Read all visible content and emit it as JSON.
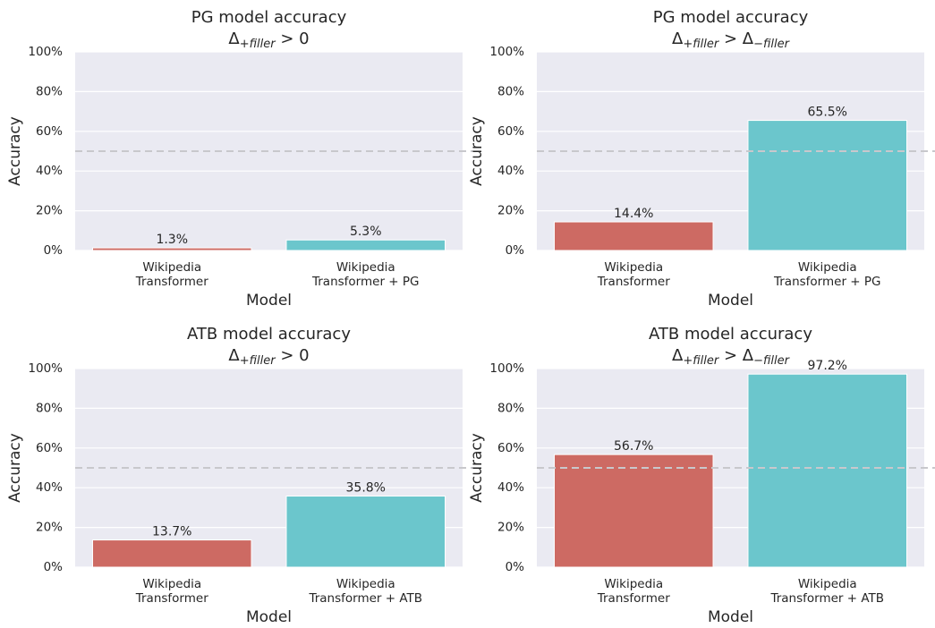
{
  "chart_data": [
    {
      "type": "bar",
      "title": "PG model accuracy",
      "subtitle": [
        {
          "text": "Δ"
        },
        {
          "text": "+filler",
          "sub": true
        },
        {
          "text": " > 0"
        }
      ],
      "xlabel": "Model",
      "ylabel": "Accuracy",
      "categories": [
        [
          "Wikipedia",
          "Transformer"
        ],
        [
          "Wikipedia",
          "Transformer + PG"
        ]
      ],
      "values": [
        1.3,
        5.3
      ],
      "value_labels": [
        "1.3%",
        "5.3%"
      ],
      "colors": [
        "#cd6a63",
        "#6bc6cc"
      ],
      "ylim": [
        0,
        100
      ],
      "yticks": [
        {
          "value": 0,
          "label": "0%"
        },
        {
          "value": 20,
          "label": "20%"
        },
        {
          "value": 40,
          "label": "40%"
        },
        {
          "value": 60,
          "label": "60%"
        },
        {
          "value": 80,
          "label": "80%"
        },
        {
          "value": 100,
          "label": "100%"
        }
      ],
      "hline": 50,
      "grid": true
    },
    {
      "type": "bar",
      "title": "PG model accuracy",
      "subtitle": [
        {
          "text": "Δ"
        },
        {
          "text": "+filler",
          "sub": true
        },
        {
          "text": " > Δ"
        },
        {
          "text": "−filler",
          "sub": true
        }
      ],
      "xlabel": "Model",
      "ylabel": "Accuracy",
      "categories": [
        [
          "Wikipedia",
          "Transformer"
        ],
        [
          "Wikipedia",
          "Transformer + PG"
        ]
      ],
      "values": [
        14.4,
        65.5
      ],
      "value_labels": [
        "14.4%",
        "65.5%"
      ],
      "colors": [
        "#cd6a63",
        "#6bc6cc"
      ],
      "ylim": [
        0,
        100
      ],
      "yticks": [
        {
          "value": 0,
          "label": "0%"
        },
        {
          "value": 20,
          "label": "20%"
        },
        {
          "value": 40,
          "label": "40%"
        },
        {
          "value": 60,
          "label": "60%"
        },
        {
          "value": 80,
          "label": "80%"
        },
        {
          "value": 100,
          "label": "100%"
        }
      ],
      "hline": 50,
      "grid": true
    },
    {
      "type": "bar",
      "title": "ATB model accuracy",
      "subtitle": [
        {
          "text": "Δ"
        },
        {
          "text": "+filler",
          "sub": true
        },
        {
          "text": " > 0"
        }
      ],
      "xlabel": "Model",
      "ylabel": "Accuracy",
      "categories": [
        [
          "Wikipedia",
          "Transformer"
        ],
        [
          "Wikipedia",
          "Transformer + ATB"
        ]
      ],
      "values": [
        13.7,
        35.8
      ],
      "value_labels": [
        "13.7%",
        "35.8%"
      ],
      "colors": [
        "#cd6a63",
        "#6bc6cc"
      ],
      "ylim": [
        0,
        100
      ],
      "yticks": [
        {
          "value": 0,
          "label": "0%"
        },
        {
          "value": 20,
          "label": "20%"
        },
        {
          "value": 40,
          "label": "40%"
        },
        {
          "value": 60,
          "label": "60%"
        },
        {
          "value": 80,
          "label": "80%"
        },
        {
          "value": 100,
          "label": "100%"
        }
      ],
      "hline": 50,
      "grid": true
    },
    {
      "type": "bar",
      "title": "ATB model accuracy",
      "subtitle": [
        {
          "text": "Δ"
        },
        {
          "text": "+filler",
          "sub": true
        },
        {
          "text": " > Δ"
        },
        {
          "text": "−filler",
          "sub": true
        }
      ],
      "xlabel": "Model",
      "ylabel": "Accuracy",
      "categories": [
        [
          "Wikipedia",
          "Transformer"
        ],
        [
          "Wikipedia",
          "Transformer + ATB"
        ]
      ],
      "values": [
        56.7,
        97.2
      ],
      "value_labels": [
        "56.7%",
        "97.2%"
      ],
      "colors": [
        "#cd6a63",
        "#6bc6cc"
      ],
      "ylim": [
        0,
        100
      ],
      "yticks": [
        {
          "value": 0,
          "label": "0%"
        },
        {
          "value": 20,
          "label": "20%"
        },
        {
          "value": 40,
          "label": "40%"
        },
        {
          "value": 60,
          "label": "60%"
        },
        {
          "value": 80,
          "label": "80%"
        },
        {
          "value": 100,
          "label": "100%"
        }
      ],
      "hline": 50,
      "grid": true
    }
  ]
}
